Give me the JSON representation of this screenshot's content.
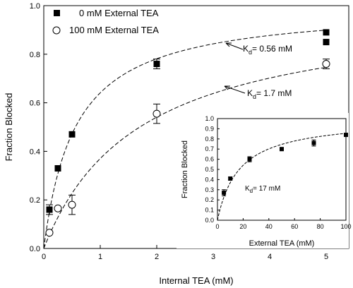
{
  "chart_data": [
    {
      "type": "scatter",
      "xlabel": "Internal TEA (mM)",
      "ylabel": "Fraction Blocked",
      "xlim": [
        0,
        5.4
      ],
      "ylim": [
        0,
        1.0
      ],
      "xticks": [
        "0",
        "1",
        "2",
        "3",
        "4",
        "5"
      ],
      "yticks": [
        "0.0",
        "0.2",
        "0.4",
        "0.6",
        "0.8",
        "1.0"
      ],
      "legend_position": "top-left",
      "series": [
        {
          "name": "0 mM External TEA",
          "marker": "filled-square",
          "points": [
            {
              "x": 0.1,
              "y": 0.16,
              "err": 0.02
            },
            {
              "x": 0.25,
              "y": 0.33,
              "err": 0.0
            },
            {
              "x": 0.5,
              "y": 0.47,
              "err": 0.0
            },
            {
              "x": 2.0,
              "y": 0.76,
              "err": 0.02
            },
            {
              "x": 5.0,
              "y": 0.89,
              "err": 0.0
            },
            {
              "x": 5.0,
              "y": 0.85,
              "err": 0.0
            }
          ],
          "fit_kd": 0.56
        },
        {
          "name": "100 mM External TEA",
          "marker": "open-circle",
          "points": [
            {
              "x": 0.1,
              "y": 0.065,
              "err": 0.0
            },
            {
              "x": 0.25,
              "y": 0.165,
              "err": 0.0
            },
            {
              "x": 0.5,
              "y": 0.18,
              "err": 0.04
            },
            {
              "x": 2.0,
              "y": 0.555,
              "err": 0.04
            },
            {
              "x": 5.0,
              "y": 0.76,
              "err": 0.02
            }
          ],
          "fit_kd": 1.7
        }
      ],
      "annotations": [
        {
          "text": "K",
          "sub": "d",
          "rest": "= 0.56 mM"
        },
        {
          "text": "K",
          "sub": "d",
          "rest": "= 1.7 mM"
        }
      ]
    },
    {
      "type": "scatter",
      "xlabel": "External TEA (mM)",
      "ylabel": "Fraction Blocked",
      "xlim": [
        0,
        100
      ],
      "ylim": [
        0,
        1.0
      ],
      "xticks": [
        "0",
        "20",
        "40",
        "60",
        "80",
        "100"
      ],
      "yticks": [
        "0.0",
        "0.1",
        "0.2",
        "0.3",
        "0.4",
        "0.5",
        "0.6",
        "0.7",
        "0.8",
        "0.9",
        "1.0"
      ],
      "series": [
        {
          "marker": "filled-square",
          "points": [
            {
              "x": 5,
              "y": 0.27,
              "err": 0.03
            },
            {
              "x": 10,
              "y": 0.41,
              "err": 0.015
            },
            {
              "x": 25,
              "y": 0.6,
              "err": 0.025
            },
            {
              "x": 50,
              "y": 0.7,
              "err": 0.01
            },
            {
              "x": 75,
              "y": 0.76,
              "err": 0.03
            },
            {
              "x": 100,
              "y": 0.84,
              "err": 0.015
            }
          ],
          "fit_kd": 17
        }
      ],
      "annotations": [
        {
          "text": "K",
          "sub": "d",
          "rest": "= 17 mM"
        }
      ]
    }
  ]
}
